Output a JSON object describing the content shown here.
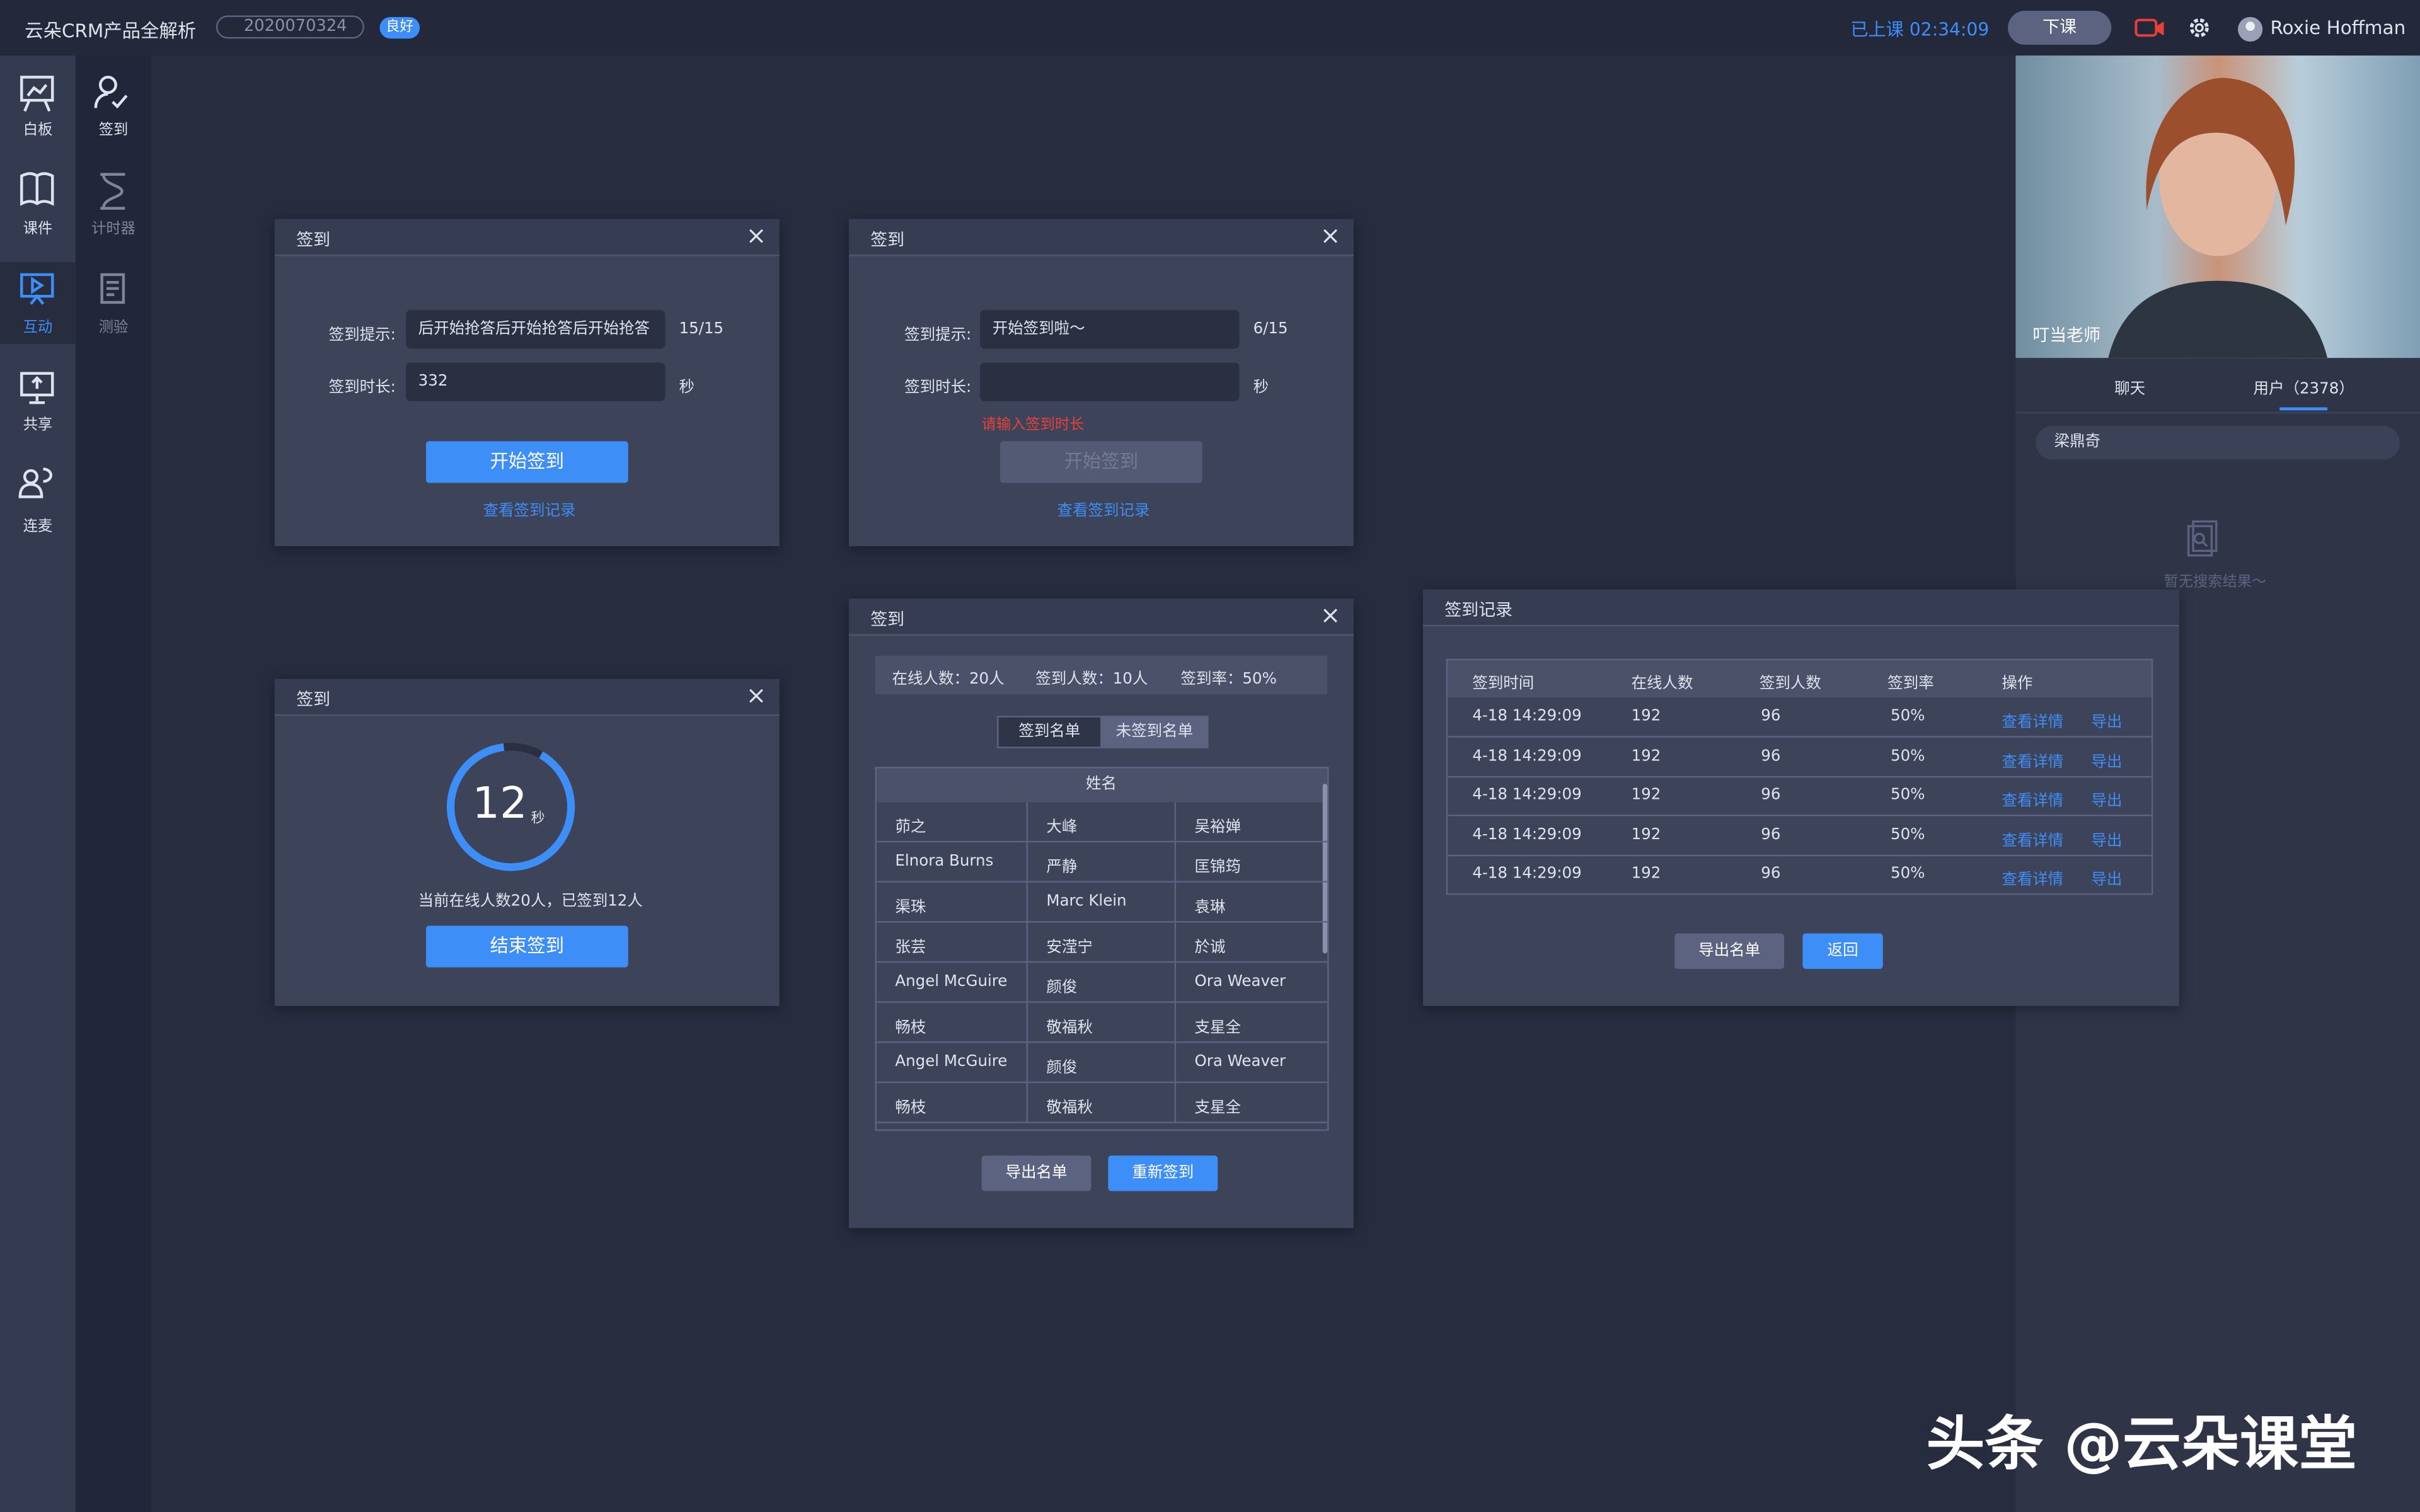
{
  "header": {
    "title": "云朵CRM产品全解析",
    "room_id": "2020070324",
    "network": "良好",
    "class_time": "已上课 02:34:09",
    "end_class": "下课",
    "user": "Roxie Hoffman"
  },
  "sidebar": {
    "items": [
      "白板",
      "签到",
      "课件",
      "计时器",
      "互动",
      "测验",
      "共享",
      "连麦"
    ]
  },
  "video": {
    "teacher": "叮当老师"
  },
  "panel": {
    "tabs": [
      "聊天",
      "用户（2378）"
    ],
    "search": "梁鼎奇",
    "empty": "暂无搜索结果～"
  },
  "dialog1": {
    "title": "签到",
    "hint_label": "签到提示:",
    "hint_value": "后开始抢答后开始抢答后开始抢答",
    "hint_count": "15/15",
    "duration_label": "签到时长:",
    "duration_value": "332",
    "unit": "秒",
    "button": "开始签到",
    "link": "查看签到记录"
  },
  "dialog2": {
    "title": "签到",
    "hint_label": "签到提示:",
    "hint_value": "开始签到啦～",
    "hint_count": "6/15",
    "duration_label": "签到时长:",
    "unit": "秒",
    "error": "请输入签到时长",
    "button": "开始签到",
    "link": "查看签到记录"
  },
  "dialog3": {
    "title": "签到",
    "countdown": "12",
    "unit": "秒",
    "status": "当前在线人数20人，已签到12人",
    "button": "结束签到"
  },
  "dialog4": {
    "title": "签到",
    "stats": [
      "在线人数：20人",
      "签到人数：10人",
      "签到率：50%"
    ],
    "tabs": [
      "签到名单",
      "未签到名单"
    ],
    "table": {
      "header": "姓名",
      "rows": [
        [
          "茆之",
          "大峰",
          "吴裕婵"
        ],
        [
          "Elnora Burns",
          "严静",
          "匡锦筠"
        ],
        [
          "渠珠",
          "Marc Klein",
          "袁琳"
        ],
        [
          "张芸",
          "安滢宁",
          "於诚"
        ],
        [
          "Angel McGuire",
          "颜俊",
          "Ora Weaver"
        ],
        [
          "畅枝",
          "敬福秋",
          "支星全"
        ],
        [
          "Angel McGuire",
          "颜俊",
          "Ora Weaver"
        ],
        [
          "畅枝",
          "敬福秋",
          "支星全"
        ]
      ]
    },
    "buttons": [
      "导出名单",
      "重新签到"
    ]
  },
  "dialog5": {
    "title": "签到记录",
    "table": {
      "columns": [
        "签到时间",
        "在线人数",
        "签到人数",
        "签到率",
        "操作"
      ],
      "rows": [
        [
          "4-18  14:29:09",
          "192",
          "96",
          "50%",
          "查看详情",
          "导出"
        ],
        [
          "4-18  14:29:09",
          "192",
          "96",
          "50%",
          "查看详情",
          "导出"
        ],
        [
          "4-18  14:29:09",
          "192",
          "96",
          "50%",
          "查看详情",
          "导出"
        ],
        [
          "4-18  14:29:09",
          "192",
          "96",
          "50%",
          "查看详情",
          "导出"
        ],
        [
          "4-18  14:29:09",
          "192",
          "96",
          "50%",
          "查看详情",
          "导出"
        ]
      ]
    },
    "buttons": [
      "导出名单",
      "返回"
    ]
  },
  "watermark": "头条 @云朵课堂"
}
